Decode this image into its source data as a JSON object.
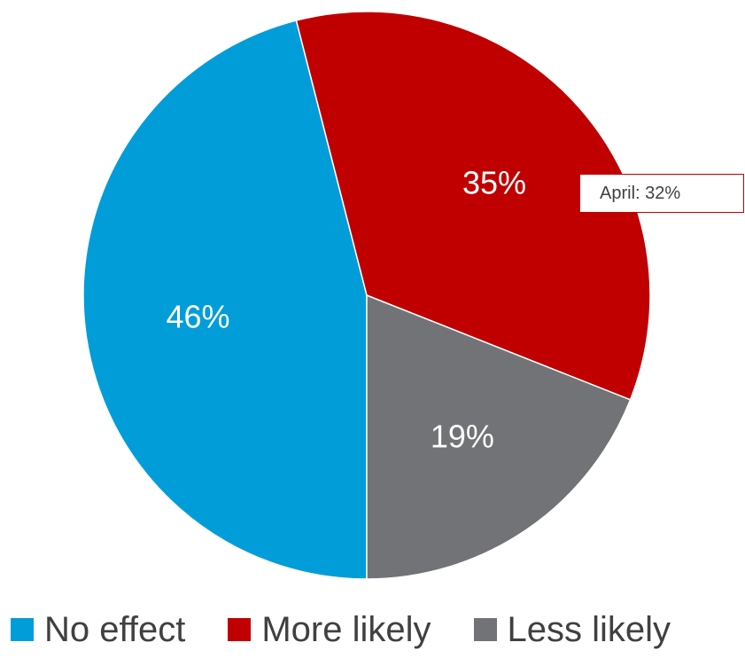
{
  "chart_data": {
    "type": "pie",
    "title": "",
    "start_angle_deg": 180,
    "direction": "clockwise",
    "slices": [
      {
        "label": "No effect",
        "value": 46,
        "display": "46%",
        "color": "#009dd9"
      },
      {
        "label": "More likely",
        "value": 35,
        "display": "35%",
        "color": "#c00000"
      },
      {
        "label": "Less likely",
        "value": 19,
        "display": "19%",
        "color": "#727376"
      }
    ],
    "annotations": [
      {
        "text": "April: 32%",
        "target": "More likely",
        "border_color": "#c00000"
      }
    ],
    "legend": {
      "placement": "bottom",
      "entries": [
        "No effect",
        "More likely",
        "Less likely"
      ]
    }
  }
}
